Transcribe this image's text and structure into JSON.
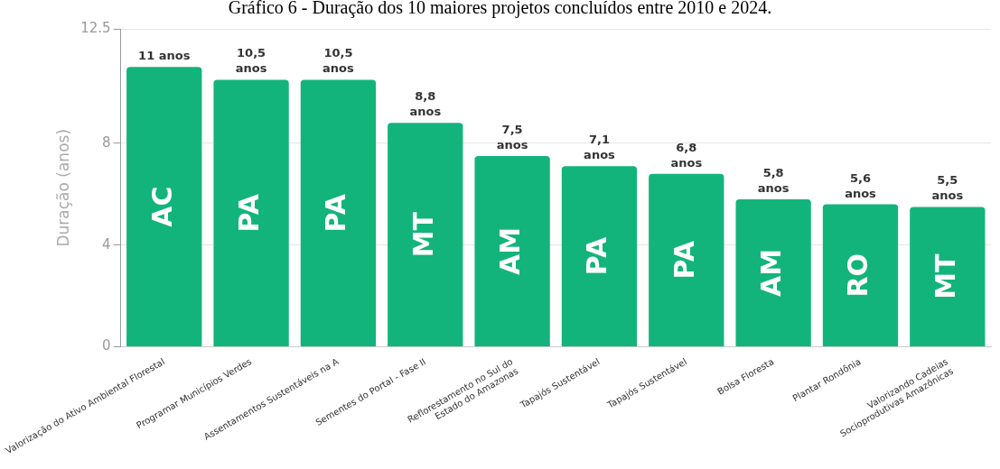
{
  "chart_data": {
    "type": "bar",
    "title": "Gráfico 6 - Duração dos 10 maiores projetos concluídos entre 2010 e 2024.",
    "ylabel": "Duração (anos)",
    "categories": [
      "Valorização do Ativo Ambiental Florestal",
      "Programar Municípios Verdes",
      "Assentamentos Sustentáveis na A",
      "Sementes do Portal - Fase II",
      "Reflorestamento no Sul do\nEstado do Amazonas",
      "Tapajós Sustentável",
      "Tapajós Sustentável",
      "Bolsa Floresta",
      "Plantar Rondônia",
      "Valorizando Cadeias\nSocioprodutivas Amazônicas"
    ],
    "values": [
      11,
      10.5,
      10.5,
      8.8,
      7.5,
      7.1,
      6.8,
      5.8,
      5.6,
      5.5
    ],
    "value_labels": [
      "11 anos",
      "10,5\nanos",
      "10,5\nanos",
      "8,8\nanos",
      "7,5\nanos",
      "7,1\nanos",
      "6,8\nanos",
      "5,8\nanos",
      "5,6\nanos",
      "5,5\nanos"
    ],
    "color": "#13b47c",
    "ylim": [
      0,
      12.5
    ],
    "yticks": [
      0,
      4,
      8,
      12.5
    ],
    "grid": "y",
    "annotations": [
      "AC",
      "PA",
      "PA",
      "MT",
      "AM",
      "PA",
      "PA",
      "AM",
      "RO",
      "MT"
    ]
  }
}
